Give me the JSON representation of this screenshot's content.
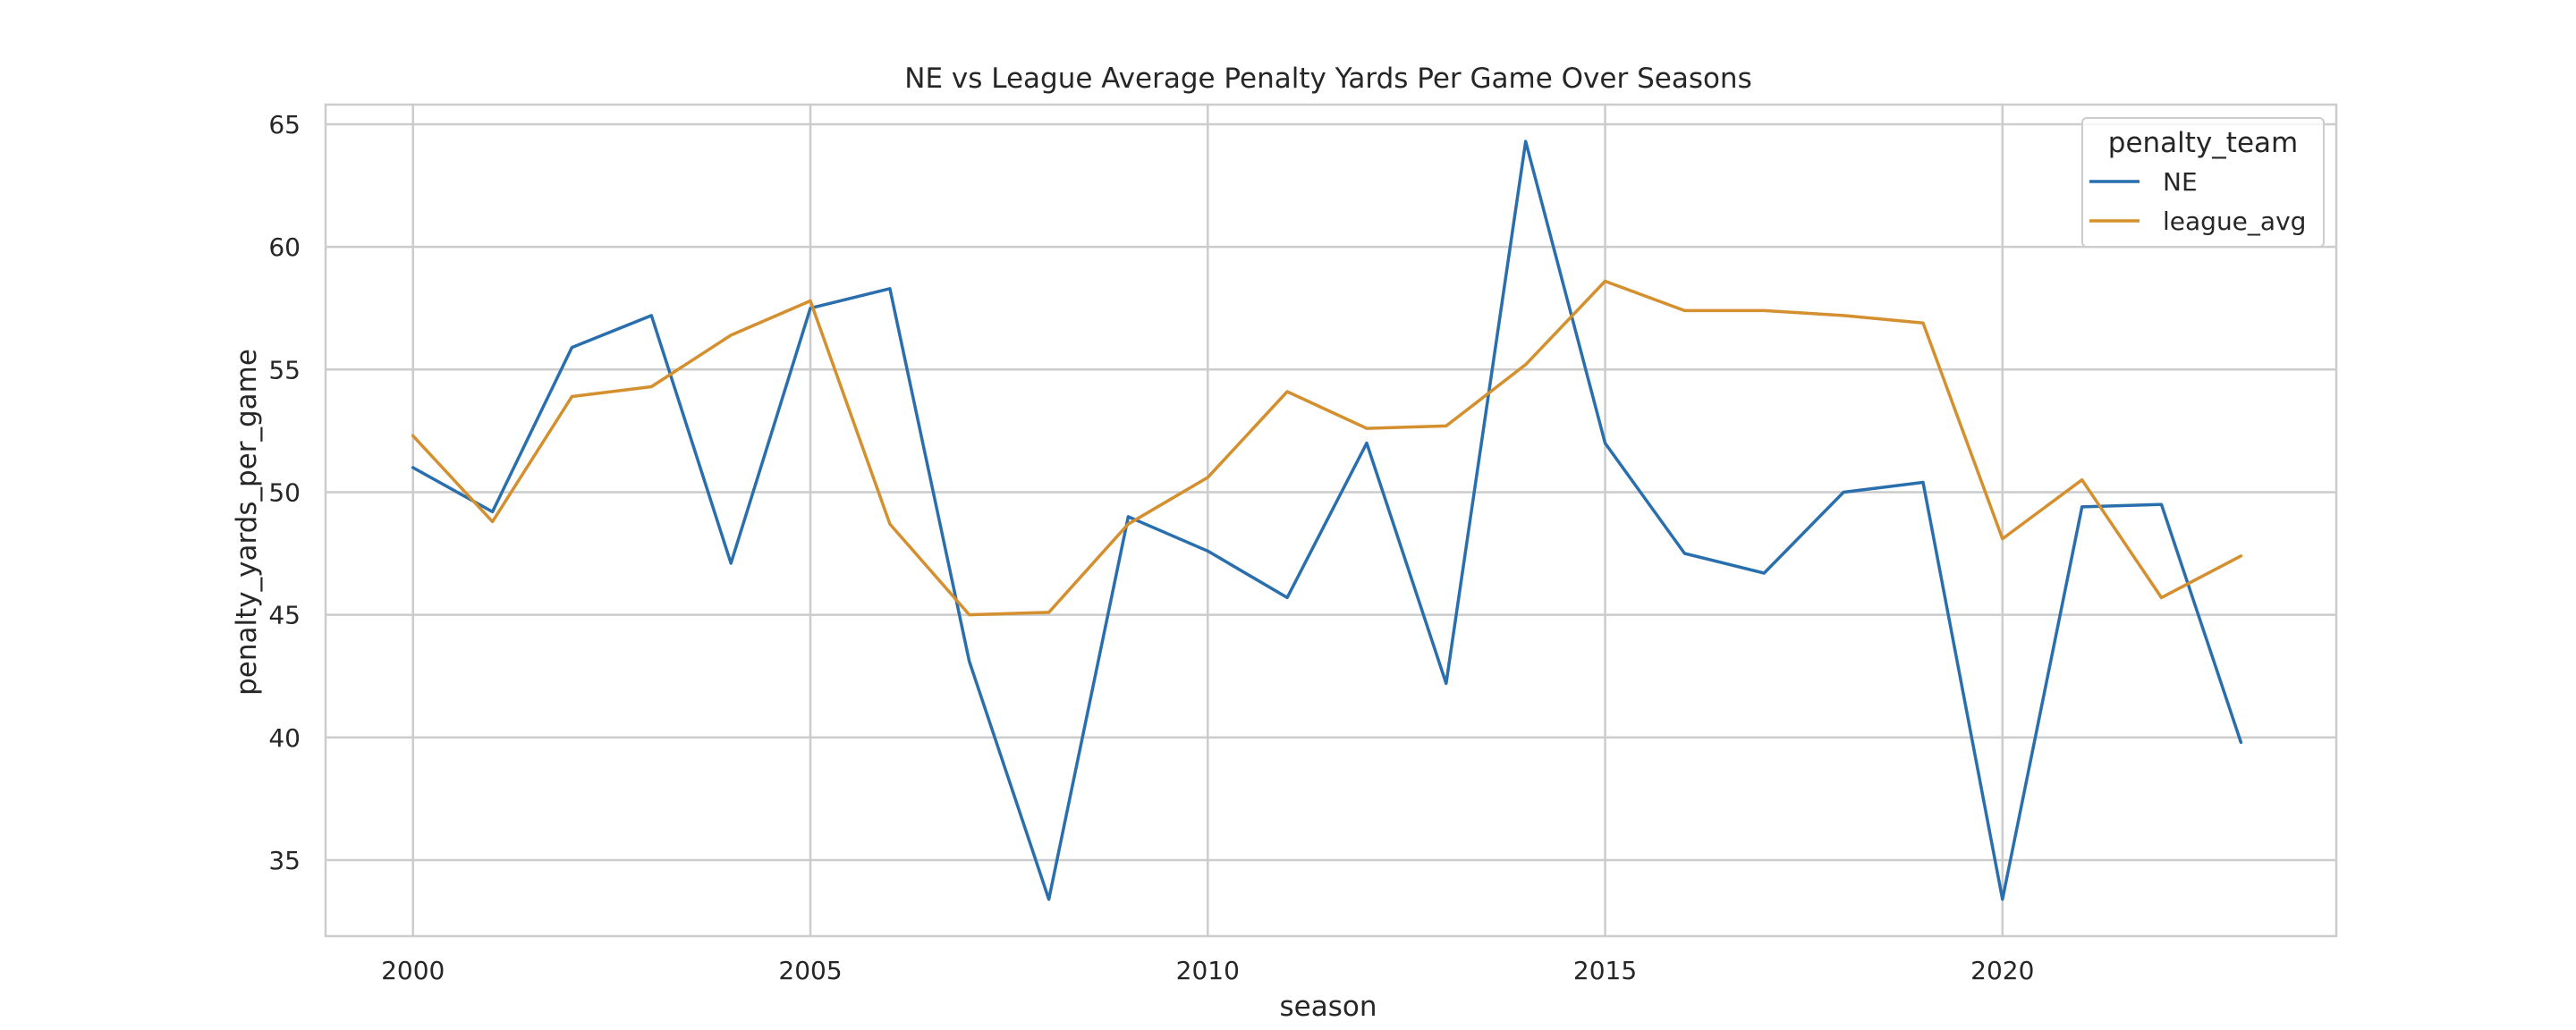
{
  "chart_data": {
    "type": "line",
    "title": "NE vs League Average Penalty Yards Per Game Over Seasons",
    "xlabel": "season",
    "ylabel": "penalty_yards_per_game",
    "x": [
      2000,
      2001,
      2002,
      2003,
      2004,
      2005,
      2006,
      2007,
      2008,
      2009,
      2010,
      2011,
      2012,
      2013,
      2014,
      2015,
      2016,
      2017,
      2018,
      2019,
      2020,
      2021,
      2022,
      2023
    ],
    "xlim": [
      1998.9,
      2024.2
    ],
    "ylim": [
      31.9,
      65.8
    ],
    "xticks": [
      2000,
      2005,
      2010,
      2015,
      2020
    ],
    "yticks": [
      35,
      40,
      45,
      50,
      55,
      60,
      65
    ],
    "grid": true,
    "legend": {
      "title": "penalty_team",
      "placement": "upper right"
    },
    "series": [
      {
        "name": "NE",
        "color": "#2a6fad",
        "values": [
          51.0,
          49.2,
          55.9,
          57.2,
          47.1,
          57.5,
          58.3,
          43.1,
          33.4,
          49.0,
          47.6,
          45.7,
          52.0,
          42.2,
          64.3,
          52.0,
          47.5,
          46.7,
          50.0,
          50.4,
          33.4,
          49.4,
          49.5,
          39.8
        ]
      },
      {
        "name": "league_avg",
        "color": "#d48f2e",
        "values": [
          52.3,
          48.8,
          53.9,
          54.3,
          56.4,
          57.8,
          48.7,
          45.0,
          45.1,
          48.7,
          50.6,
          54.1,
          52.6,
          52.7,
          55.2,
          58.6,
          57.4,
          57.4,
          57.2,
          56.9,
          48.1,
          50.5,
          45.7,
          47.4
        ]
      }
    ]
  }
}
